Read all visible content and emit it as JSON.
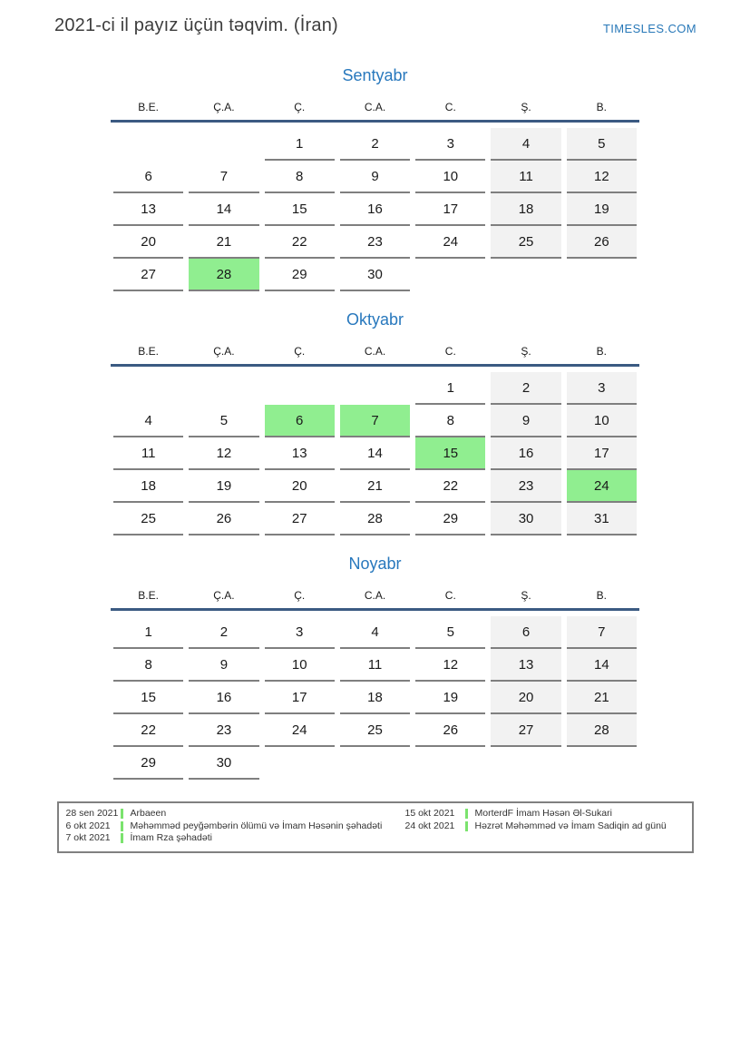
{
  "header": {
    "title": "2021-ci il payız üçün təqvim. (İran)",
    "brand": "TIMESLES.COM"
  },
  "day_headers": [
    "B.E.",
    "Ç.A.",
    "Ç.",
    "C.A.",
    "C.",
    "Ş.",
    "B."
  ],
  "weekend_columns": [
    5,
    6
  ],
  "months": [
    {
      "name": "Sentyabr",
      "weeks": [
        [
          "",
          "",
          "1",
          "2",
          "3",
          "4",
          "5"
        ],
        [
          "6",
          "7",
          "8",
          "9",
          "10",
          "11",
          "12"
        ],
        [
          "13",
          "14",
          "15",
          "16",
          "17",
          "18",
          "19"
        ],
        [
          "20",
          "21",
          "22",
          "23",
          "24",
          "25",
          "26"
        ],
        [
          "27",
          "28",
          "29",
          "30",
          "",
          "",
          ""
        ]
      ],
      "highlighted_days": [
        "28"
      ]
    },
    {
      "name": "Oktyabr",
      "weeks": [
        [
          "",
          "",
          "",
          "",
          "1",
          "2",
          "3"
        ],
        [
          "4",
          "5",
          "6",
          "7",
          "8",
          "9",
          "10"
        ],
        [
          "11",
          "12",
          "13",
          "14",
          "15",
          "16",
          "17"
        ],
        [
          "18",
          "19",
          "20",
          "21",
          "22",
          "23",
          "24"
        ],
        [
          "25",
          "26",
          "27",
          "28",
          "29",
          "30",
          "31"
        ]
      ],
      "highlighted_days": [
        "6",
        "7",
        "15",
        "24"
      ]
    },
    {
      "name": "Noyabr",
      "weeks": [
        [
          "1",
          "2",
          "3",
          "4",
          "5",
          "6",
          "7"
        ],
        [
          "8",
          "9",
          "10",
          "11",
          "12",
          "13",
          "14"
        ],
        [
          "15",
          "16",
          "17",
          "18",
          "19",
          "20",
          "21"
        ],
        [
          "22",
          "23",
          "24",
          "25",
          "26",
          "27",
          "28"
        ],
        [
          "29",
          "30",
          "",
          "",
          "",
          "",
          ""
        ]
      ],
      "highlighted_days": []
    }
  ],
  "legend": {
    "columns": [
      [
        {
          "date": "28 sen 2021",
          "label": "Arbaeen"
        },
        {
          "date": "6 okt 2021",
          "label": "Məhəmməd peyğəmbərin ölümü və İmam Həsənin şəhadəti"
        },
        {
          "date": "7 okt 2021",
          "label": "İmam Rza şəhadəti"
        }
      ],
      [
        {
          "date": "15 okt 2021",
          "label": "MorterdF İmam Həsən Əl-Sukari"
        },
        {
          "date": "24 okt 2021",
          "label": "Həzrət Məhəmməd və İmam Sadiqin ad günü"
        }
      ]
    ]
  },
  "colors": {
    "accent_blue": "#2878b8",
    "header_rule_blue": "#3b5a82",
    "weekend_gray": "#f2f2f2",
    "holiday_green": "#90ee90",
    "legend_bar_green": "#7be36e",
    "cell_underline_gray": "#7f7f7f"
  }
}
